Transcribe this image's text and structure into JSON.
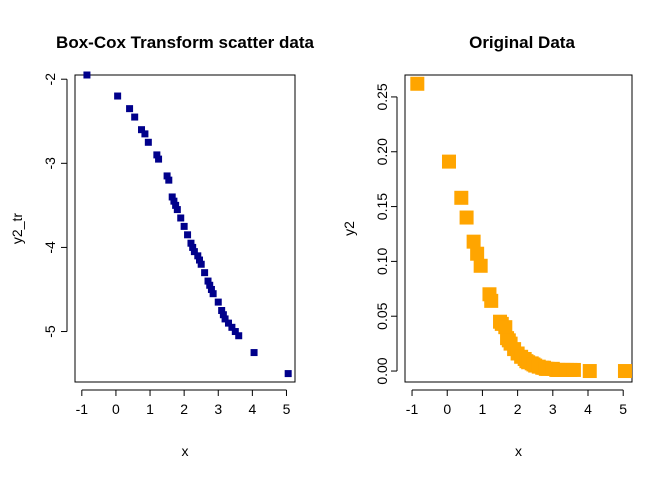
{
  "chart_data": [
    {
      "type": "scatter",
      "title": "Box-Cox Transform scatter data",
      "xlabel": "x",
      "ylabel": "y2_tr",
      "xlim": [
        -1.2,
        5.25
      ],
      "ylim": [
        -5.6,
        -1.95
      ],
      "xticks": [
        -1,
        0,
        1,
        2,
        3,
        4,
        5
      ],
      "yticks": [
        -5,
        -4,
        -3,
        -2
      ],
      "marker_color": "#00008B",
      "marker_size": "small",
      "grid": false,
      "x": [
        -0.85,
        0.05,
        0.4,
        0.55,
        0.75,
        0.85,
        0.95,
        1.2,
        1.25,
        1.5,
        1.55,
        1.65,
        1.7,
        1.75,
        1.8,
        1.9,
        2.0,
        2.1,
        2.2,
        2.25,
        2.3,
        2.4,
        2.45,
        2.5,
        2.6,
        2.7,
        2.75,
        2.8,
        2.85,
        3.0,
        3.1,
        3.15,
        3.2,
        3.3,
        3.4,
        3.5,
        3.6,
        4.05,
        5.05
      ],
      "y": [
        -1.95,
        -2.2,
        -2.35,
        -2.45,
        -2.6,
        -2.65,
        -2.75,
        -2.9,
        -2.95,
        -3.15,
        -3.2,
        -3.4,
        -3.45,
        -3.5,
        -3.55,
        -3.65,
        -3.75,
        -3.85,
        -3.95,
        -4.0,
        -4.05,
        -4.1,
        -4.15,
        -4.2,
        -4.3,
        -4.4,
        -4.45,
        -4.5,
        -4.55,
        -4.65,
        -4.75,
        -4.8,
        -4.85,
        -4.9,
        -4.95,
        -5.0,
        -5.05,
        -5.25,
        -5.5
      ]
    },
    {
      "type": "scatter",
      "title": "Original Data",
      "xlabel": "x",
      "ylabel": "y2",
      "xlim": [
        -1.2,
        5.25
      ],
      "ylim": [
        -0.01,
        0.27
      ],
      "xticks": [
        -1,
        0,
        1,
        2,
        3,
        4,
        5
      ],
      "yticks": [
        0.0,
        0.05,
        0.1,
        0.15,
        0.2,
        0.25
      ],
      "ytick_labels": [
        "0.00",
        "0.05",
        "0.10",
        "0.15",
        "0.20",
        "0.25"
      ],
      "marker_color": "#FFA500",
      "marker_size": "large",
      "grid": false,
      "x": [
        -0.85,
        0.05,
        0.4,
        0.55,
        0.75,
        0.85,
        0.95,
        1.2,
        1.25,
        1.5,
        1.55,
        1.65,
        1.7,
        1.75,
        1.8,
        1.9,
        2.0,
        2.1,
        2.2,
        2.25,
        2.3,
        2.4,
        2.45,
        2.5,
        2.6,
        2.7,
        2.75,
        2.8,
        2.85,
        3.0,
        3.1,
        3.15,
        3.2,
        3.3,
        3.4,
        3.5,
        3.6,
        4.05,
        5.05
      ],
      "y": [
        0.262,
        0.191,
        0.158,
        0.14,
        0.118,
        0.107,
        0.096,
        0.07,
        0.064,
        0.045,
        0.043,
        0.04,
        0.03,
        0.028,
        0.025,
        0.02,
        0.016,
        0.013,
        0.011,
        0.009,
        0.008,
        0.007,
        0.006,
        0.005,
        0.004,
        0.003,
        0.003,
        0.002,
        0.002,
        0.002,
        0.001,
        0.001,
        0.001,
        0.001,
        0.001,
        0.001,
        0.001,
        0.0,
        0.0
      ]
    }
  ]
}
